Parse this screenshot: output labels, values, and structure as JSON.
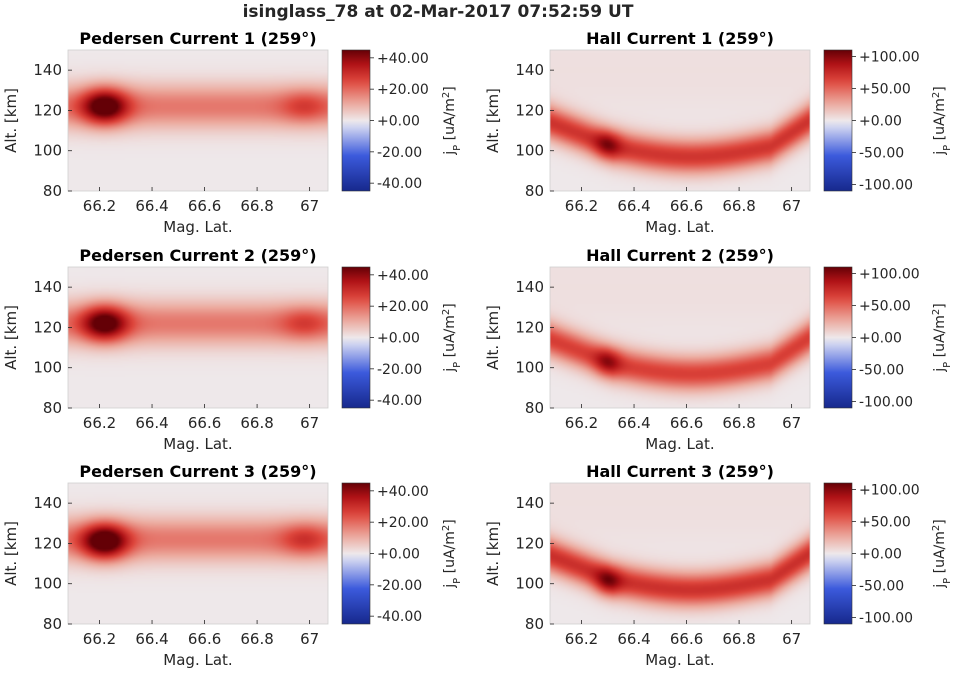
{
  "figure": {
    "title": "isinglass_78 at 02-Mar-2017 07:52:59 UT"
  },
  "chart_data": [
    {
      "type": "heatmap",
      "title": "Pedersen Current 1 (259°)",
      "xlabel": "Mag. Lat.",
      "ylabel": "Alt. [km]",
      "xticks": [
        "66.2",
        "66.4",
        "66.6",
        "66.8",
        "67"
      ],
      "xtick_values": [
        66.2,
        66.4,
        66.6,
        66.8,
        67.0
      ],
      "yticks": [
        "80",
        "100",
        "120",
        "140"
      ],
      "ytick_values": [
        80,
        100,
        120,
        140
      ],
      "xlim": [
        66.08,
        67.07
      ],
      "ylim": [
        80,
        150
      ],
      "colorbar": {
        "label": "j",
        "label_sub": "P",
        "label_unit": " [uA/m",
        "label_sup": "2",
        "label_close": "]",
        "range": [
          -45,
          45
        ],
        "ticks": [
          "+40.00",
          "+20.00",
          "+0.00",
          "-20.00",
          "-40.00"
        ],
        "tick_values": [
          40,
          20,
          0,
          -20,
          -40
        ],
        "colormap": "blue-white-red"
      },
      "features": [
        {
          "shape": "band",
          "x_start": 66.08,
          "x_end": 67.07,
          "alt_center": 122,
          "alt_half_width": 11,
          "value": 18
        },
        {
          "shape": "blob",
          "x_center": 66.22,
          "alt_center": 122,
          "x_radius": 0.1,
          "alt_radius": 10,
          "value": 36
        },
        {
          "shape": "blob",
          "x_center": 66.98,
          "alt_center": 122,
          "x_radius": 0.1,
          "alt_radius": 9,
          "value": 10
        }
      ]
    },
    {
      "type": "heatmap",
      "title": "Hall Current 1 (259°)",
      "xlabel": "Mag. Lat.",
      "ylabel": "Alt. [km]",
      "xticks": [
        "66.2",
        "66.4",
        "66.6",
        "66.8",
        "67"
      ],
      "xtick_values": [
        66.2,
        66.4,
        66.6,
        66.8,
        67.0
      ],
      "yticks": [
        "80",
        "100",
        "120",
        "140"
      ],
      "ytick_values": [
        80,
        100,
        120,
        140
      ],
      "xlim": [
        66.08,
        67.07
      ],
      "ylim": [
        80,
        150
      ],
      "colorbar": {
        "label": "j",
        "label_sub": "P",
        "label_unit": " [uA/m",
        "label_sup": "2",
        "label_close": "]",
        "range": [
          -110,
          110
        ],
        "ticks": [
          "+100.00",
          "+50.00",
          "+0.00",
          "-50.00",
          "-100.00"
        ],
        "tick_values": [
          100,
          50,
          0,
          -50,
          -100
        ],
        "colormap": "blue-white-red"
      },
      "features": [
        {
          "shape": "hall",
          "left_x": 66.08,
          "right_x": 67.07,
          "value": 70,
          "peak_x": 66.3,
          "peak_alt": 103,
          "peak_value": 105
        }
      ]
    },
    {
      "type": "heatmap",
      "title": "Pedersen Current 2 (259°)",
      "xlabel": "Mag. Lat.",
      "ylabel": "Alt. [km]",
      "xticks": [
        "66.2",
        "66.4",
        "66.6",
        "66.8",
        "67"
      ],
      "xtick_values": [
        66.2,
        66.4,
        66.6,
        66.8,
        67.0
      ],
      "yticks": [
        "80",
        "100",
        "120",
        "140"
      ],
      "ytick_values": [
        80,
        100,
        120,
        140
      ],
      "xlim": [
        66.08,
        67.07
      ],
      "ylim": [
        80,
        150
      ],
      "colorbar": {
        "label": "j",
        "label_sub": "P",
        "label_unit": " [uA/m",
        "label_sup": "2",
        "label_close": "]",
        "range": [
          -45,
          45
        ],
        "ticks": [
          "+40.00",
          "+20.00",
          "+0.00",
          "-20.00",
          "-40.00"
        ],
        "tick_values": [
          40,
          20,
          0,
          -20,
          -40
        ],
        "colormap": "blue-white-red"
      },
      "features": [
        {
          "shape": "band",
          "x_start": 66.08,
          "x_end": 67.07,
          "alt_center": 122,
          "alt_half_width": 11,
          "value": 18
        },
        {
          "shape": "blob",
          "x_center": 66.22,
          "alt_center": 122,
          "x_radius": 0.1,
          "alt_radius": 10,
          "value": 34
        },
        {
          "shape": "blob",
          "x_center": 66.98,
          "alt_center": 122,
          "x_radius": 0.1,
          "alt_radius": 9,
          "value": 10
        }
      ]
    },
    {
      "type": "heatmap",
      "title": "Hall Current 2 (259°)",
      "xlabel": "Mag. Lat.",
      "ylabel": "Alt. [km]",
      "xticks": [
        "66.2",
        "66.4",
        "66.6",
        "66.8",
        "67"
      ],
      "xtick_values": [
        66.2,
        66.4,
        66.6,
        66.8,
        67.0
      ],
      "yticks": [
        "80",
        "100",
        "120",
        "140"
      ],
      "ytick_values": [
        80,
        100,
        120,
        140
      ],
      "xlim": [
        66.08,
        67.07
      ],
      "ylim": [
        80,
        150
      ],
      "colorbar": {
        "label": "j",
        "label_sub": "P",
        "label_unit": " [uA/m",
        "label_sup": "2",
        "label_close": "]",
        "range": [
          -110,
          110
        ],
        "ticks": [
          "+100.00",
          "+50.00",
          "+0.00",
          "-50.00",
          "-100.00"
        ],
        "tick_values": [
          100,
          50,
          0,
          -50,
          -100
        ],
        "colormap": "blue-white-red"
      },
      "features": [
        {
          "shape": "hall",
          "left_x": 66.08,
          "right_x": 67.07,
          "value": 65,
          "peak_x": 66.3,
          "peak_alt": 103,
          "peak_value": 100
        }
      ]
    },
    {
      "type": "heatmap",
      "title": "Pedersen Current 3 (259°)",
      "xlabel": "Mag. Lat.",
      "ylabel": "Alt. [km]",
      "xticks": [
        "66.2",
        "66.4",
        "66.6",
        "66.8",
        "67"
      ],
      "xtick_values": [
        66.2,
        66.4,
        66.6,
        66.8,
        67.0
      ],
      "yticks": [
        "80",
        "100",
        "120",
        "140"
      ],
      "ytick_values": [
        80,
        100,
        120,
        140
      ],
      "xlim": [
        66.08,
        67.07
      ],
      "ylim": [
        80,
        150
      ],
      "colorbar": {
        "label": "j",
        "label_sub": "P",
        "label_unit": " [uA/m",
        "label_sup": "2",
        "label_close": "]",
        "range": [
          -45,
          45
        ],
        "ticks": [
          "+40.00",
          "+20.00",
          "+0.00",
          "-20.00",
          "-40.00"
        ],
        "tick_values": [
          40,
          20,
          0,
          -20,
          -40
        ],
        "colormap": "blue-white-red"
      },
      "features": [
        {
          "shape": "band",
          "x_start": 66.08,
          "x_end": 67.07,
          "alt_center": 122,
          "alt_half_width": 11,
          "value": 18
        },
        {
          "shape": "blob",
          "x_center": 66.22,
          "alt_center": 121,
          "x_radius": 0.1,
          "alt_radius": 10,
          "value": 38
        },
        {
          "shape": "blob",
          "x_center": 66.98,
          "alt_center": 122,
          "x_radius": 0.1,
          "alt_radius": 9,
          "value": 12
        }
      ]
    },
    {
      "type": "heatmap",
      "title": "Hall Current 3 (259°)",
      "xlabel": "Mag. Lat.",
      "ylabel": "Alt. [km]",
      "xticks": [
        "66.2",
        "66.4",
        "66.6",
        "66.8",
        "67"
      ],
      "xtick_values": [
        66.2,
        66.4,
        66.6,
        66.8,
        67.0
      ],
      "yticks": [
        "80",
        "100",
        "120",
        "140"
      ],
      "ytick_values": [
        80,
        100,
        120,
        140
      ],
      "xlim": [
        66.08,
        67.07
      ],
      "ylim": [
        80,
        150
      ],
      "colorbar": {
        "label": "j",
        "label_sub": "P",
        "label_unit": " [uA/m",
        "label_sup": "2",
        "label_close": "]",
        "range": [
          -110,
          110
        ],
        "ticks": [
          "+100.00",
          "+50.00",
          "+0.00",
          "-50.00",
          "-100.00"
        ],
        "tick_values": [
          100,
          50,
          0,
          -50,
          -100
        ],
        "colormap": "blue-white-red"
      },
      "features": [
        {
          "shape": "hall",
          "left_x": 66.08,
          "right_x": 67.07,
          "value": 72,
          "peak_x": 66.3,
          "peak_alt": 101,
          "peak_value": 110
        }
      ]
    }
  ]
}
